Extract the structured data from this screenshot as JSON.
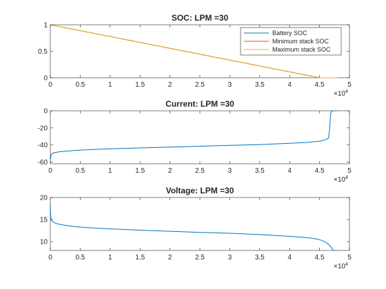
{
  "figure": {
    "background": "#ffffff"
  },
  "chart_data": [
    {
      "type": "line",
      "title": "SOC: LPM =30",
      "xlabel": "",
      "ylabel": "",
      "xlim": [
        0,
        50000
      ],
      "ylim": [
        0,
        1
      ],
      "xticks": [
        0,
        5000,
        10000,
        15000,
        20000,
        25000,
        30000,
        35000,
        40000,
        45000,
        50000
      ],
      "xticklabels": [
        "0",
        "0.5",
        "1",
        "1.5",
        "2",
        "2.5",
        "3",
        "3.5",
        "4",
        "4.5",
        "5"
      ],
      "yticks": [
        0,
        0.5,
        1
      ],
      "yticklabels": [
        "0",
        "0.5",
        "1"
      ],
      "x_exponent_label": "×10",
      "x_exponent_power": "4",
      "grid": false,
      "legend": {
        "placement": "top-right",
        "entries": [
          "Battery SOC",
          "Minimum stack SOC",
          "Maximum stack SOC"
        ]
      },
      "series": [
        {
          "name": "Battery SOC",
          "color": "#0072BD",
          "x": [
            0,
            45000,
            47000,
            48000
          ],
          "y": [
            1,
            0.0,
            0.0,
            0.0
          ]
        },
        {
          "name": "Minimum stack SOC",
          "color": "#D95319",
          "x": [
            0,
            45000,
            47000,
            48000
          ],
          "y": [
            1,
            0.0,
            0.0,
            0.0
          ]
        },
        {
          "name": "Maximum stack SOC",
          "color": "#EDB120",
          "x": [
            0,
            45000,
            47000,
            48000
          ],
          "y": [
            1,
            0.0,
            0.0,
            0.0
          ]
        }
      ]
    },
    {
      "type": "line",
      "title": "Current: LPM =30",
      "xlabel": "",
      "ylabel": "",
      "xlim": [
        0,
        50000
      ],
      "ylim": [
        -62,
        0
      ],
      "xticks": [
        0,
        5000,
        10000,
        15000,
        20000,
        25000,
        30000,
        35000,
        40000,
        45000,
        50000
      ],
      "xticklabels": [
        "0",
        "0.5",
        "1",
        "1.5",
        "2",
        "2.5",
        "3",
        "3.5",
        "4",
        "4.5",
        "5"
      ],
      "yticks": [
        -60,
        -40,
        -20,
        0
      ],
      "yticklabels": [
        "-60",
        "-40",
        "-20",
        "0"
      ],
      "x_exponent_label": "×10",
      "x_exponent_power": "4",
      "grid": false,
      "series": [
        {
          "name": "",
          "color": "#0072BD",
          "x": [
            0,
            100,
            300,
            700,
            1500,
            3000,
            5000,
            10000,
            15000,
            20000,
            25000,
            30000,
            35000,
            40000,
            43000,
            45000,
            46000,
            46500,
            46700,
            46800,
            46900,
            47000,
            47200,
            47500,
            48000
          ],
          "y": [
            -58,
            -52,
            -50,
            -49,
            -48,
            -47,
            -46,
            -44.5,
            -43.5,
            -42.5,
            -41.5,
            -40.5,
            -39.5,
            -38,
            -37,
            -35.5,
            -34,
            -32,
            -20,
            -8,
            -2,
            -0.5,
            0,
            0,
            0
          ]
        }
      ]
    },
    {
      "type": "line",
      "title": "Voltage: LPM =30",
      "xlabel": "",
      "ylabel": "",
      "xlim": [
        0,
        50000
      ],
      "ylim": [
        8,
        20
      ],
      "xticks": [
        0,
        5000,
        10000,
        15000,
        20000,
        25000,
        30000,
        35000,
        40000,
        45000,
        50000
      ],
      "xticklabels": [
        "0",
        "0.5",
        "1",
        "1.5",
        "2",
        "2.5",
        "3",
        "3.5",
        "4",
        "4.5",
        "5"
      ],
      "yticks": [
        10,
        15,
        20
      ],
      "yticklabels": [
        "10",
        "15",
        "20"
      ],
      "x_exponent_label": "×10",
      "x_exponent_power": "4",
      "grid": false,
      "series": [
        {
          "name": "",
          "color": "#0072BD",
          "x": [
            0,
            50,
            150,
            400,
            1000,
            2000,
            4000,
            7000,
            10000,
            15000,
            20000,
            25000,
            30000,
            35000,
            40000,
            42000,
            43500,
            44500,
            45300,
            46000,
            46500,
            47000,
            47300,
            47600,
            48000
          ],
          "y": [
            18.5,
            16,
            15,
            14.5,
            14.1,
            13.8,
            13.4,
            13.1,
            12.9,
            12.6,
            12.35,
            12.1,
            11.9,
            11.6,
            11.2,
            11.0,
            10.8,
            10.6,
            10.3,
            9.9,
            9.4,
            8.6,
            8.0,
            8.0,
            8.0
          ]
        }
      ]
    }
  ]
}
